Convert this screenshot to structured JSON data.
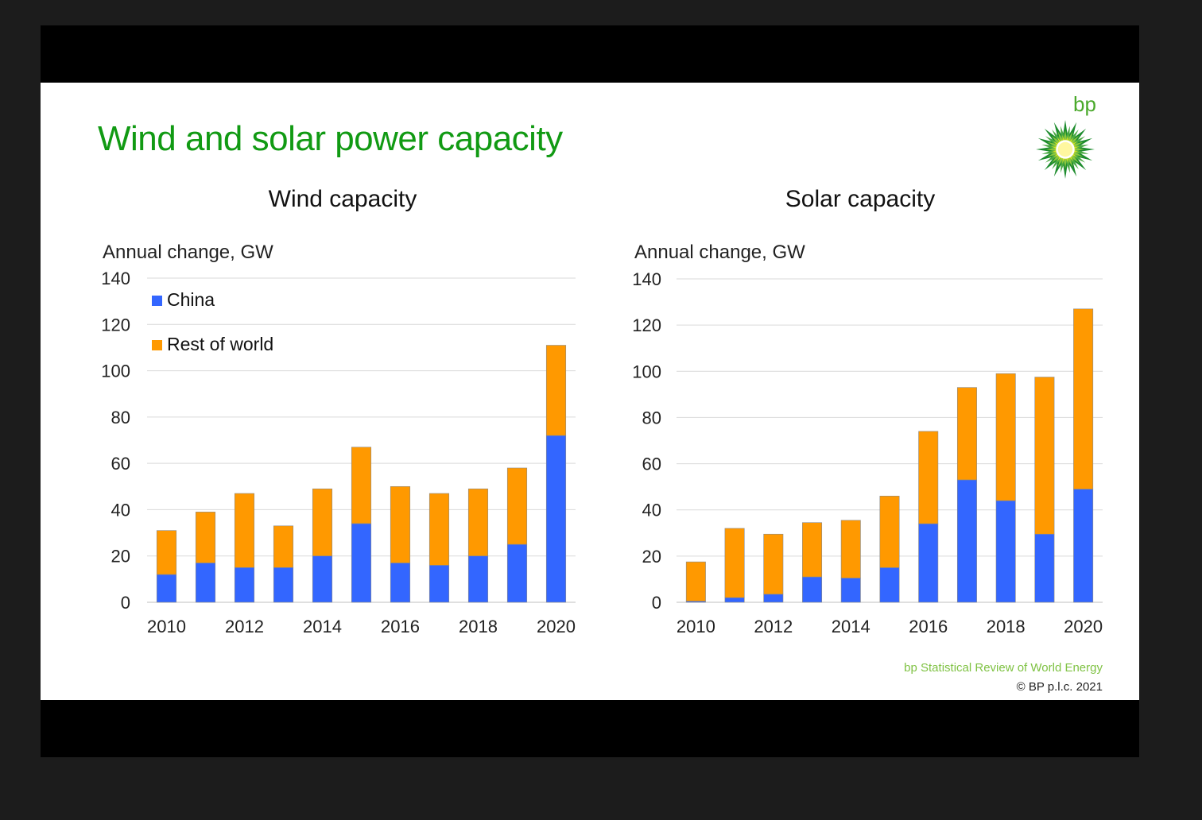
{
  "slide": {
    "title": "Wind and solar power capacity",
    "logo_text": "bp",
    "source": "bp Statistical Review of World Energy",
    "copyright": "© BP p.l.c. 2021",
    "colors": {
      "title": "#119a13",
      "china": "#3366ff",
      "rest_of_world": "#ff9900",
      "logo_green": "#4aa92b",
      "logo_yellow": "#ffe600"
    },
    "logo_icon": "helios-sunburst-icon"
  },
  "chart_data": [
    {
      "type": "bar",
      "stacked": true,
      "title": "Wind capacity",
      "ylabel": "Annual change, GW",
      "xlabel": "",
      "ylim": [
        0,
        140
      ],
      "yticks": [
        0,
        20,
        40,
        60,
        80,
        100,
        120,
        140
      ],
      "categories": [
        "2010",
        "2011",
        "2012",
        "2013",
        "2014",
        "2015",
        "2016",
        "2017",
        "2018",
        "2019",
        "2020"
      ],
      "xtick_labels": [
        "2010",
        "2012",
        "2014",
        "2016",
        "2018",
        "2020"
      ],
      "legend": "top-left",
      "grid": true,
      "series": [
        {
          "name": "China",
          "color": "#3366ff",
          "values": [
            12,
            17,
            15,
            15,
            20,
            34,
            17,
            16,
            20,
            25,
            72
          ]
        },
        {
          "name": "Rest of world",
          "color": "#ff9900",
          "values": [
            19,
            22,
            32,
            18,
            29,
            33,
            33,
            31,
            29,
            33,
            39
          ]
        }
      ]
    },
    {
      "type": "bar",
      "stacked": true,
      "title": "Solar capacity",
      "ylabel": "Annual change, GW",
      "xlabel": "",
      "ylim": [
        0,
        140
      ],
      "yticks": [
        0,
        20,
        40,
        60,
        80,
        100,
        120,
        140
      ],
      "categories": [
        "2010",
        "2011",
        "2012",
        "2013",
        "2014",
        "2015",
        "2016",
        "2017",
        "2018",
        "2019",
        "2020"
      ],
      "xtick_labels": [
        "2010",
        "2012",
        "2014",
        "2016",
        "2018",
        "2020"
      ],
      "legend": "none",
      "grid": true,
      "series": [
        {
          "name": "China",
          "color": "#3366ff",
          "values": [
            0.5,
            2,
            3.5,
            11,
            10.5,
            15,
            34,
            53,
            44,
            29.5,
            49
          ]
        },
        {
          "name": "Rest of world",
          "color": "#ff9900",
          "values": [
            17,
            30,
            26,
            23.5,
            25,
            31,
            40,
            40,
            55,
            68,
            78
          ]
        }
      ]
    }
  ]
}
